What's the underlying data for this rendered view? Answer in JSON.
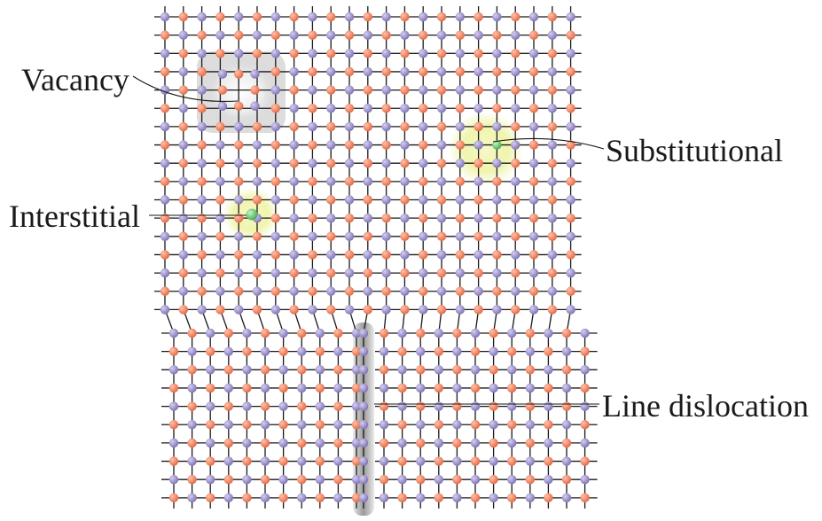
{
  "labels": {
    "vacancy": "Vacancy",
    "substitutional": "Substitutional",
    "interstitial": "Interstitial",
    "line_dislocation": "Line dislocation"
  },
  "colors": {
    "atom_a": "#9b8fc4",
    "atom_b": "#f07c5c",
    "bond": "#1a1a1a",
    "impurity": "#6ac46a",
    "defect_glow": "#e8f0a8",
    "vacancy_shadow": "#c8c8c8",
    "dislocation_shadow": "#9a9a9a"
  }
}
